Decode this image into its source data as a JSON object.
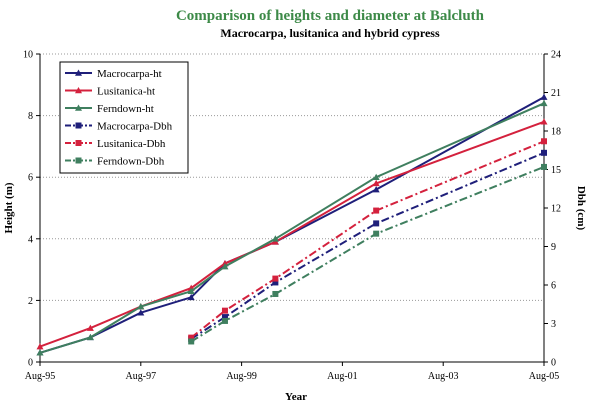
{
  "chart_data": {
    "type": "line",
    "title": "Comparison of heights and diameter at Balcluth",
    "subtitle": "Macrocarpa, lusitanica and hybrid cypress",
    "xlabel": "Year",
    "ylabel_left": "Height (m)",
    "ylabel_right": "Dbh (cm)",
    "x_range": [
      1995.58,
      2005.58
    ],
    "x_ticks": [
      {
        "label": "Aug-95",
        "value": 1995.58
      },
      {
        "label": "Aug-97",
        "value": 1997.58
      },
      {
        "label": "Aug-99",
        "value": 1999.58
      },
      {
        "label": "Aug-01",
        "value": 2001.58
      },
      {
        "label": "Aug-03",
        "value": 2003.58
      },
      {
        "label": "Aug-05",
        "value": 2005.58
      }
    ],
    "ylim_left": [
      0,
      10
    ],
    "y_ticks_left": [
      "0",
      "2",
      "4",
      "6",
      "8",
      "10"
    ],
    "ylim_right": [
      0,
      24
    ],
    "y_ticks_right": [
      "0",
      "3",
      "6",
      "9",
      "12",
      "15",
      "18",
      "21",
      "24"
    ],
    "grid": "horizontal",
    "legend_position": "top-left",
    "series": [
      {
        "name": "Macrocarpa-ht",
        "axis": "left",
        "color": "#1f1f7a",
        "style": "solid",
        "marker": "triangle",
        "x": [
          1995.58,
          1996.58,
          1997.58,
          1998.58,
          1999.25,
          2000.25,
          2002.25,
          2005.58
        ],
        "y": [
          0.3,
          0.8,
          1.6,
          2.1,
          3.2,
          3.9,
          5.6,
          8.6
        ]
      },
      {
        "name": "Lusitanica-ht",
        "axis": "left",
        "color": "#d4213d",
        "style": "solid",
        "marker": "triangle",
        "x": [
          1995.58,
          1996.58,
          1997.58,
          1998.58,
          1999.25,
          2000.25,
          2002.25,
          2005.58
        ],
        "y": [
          0.5,
          1.1,
          1.8,
          2.4,
          3.2,
          3.9,
          5.8,
          7.8
        ]
      },
      {
        "name": "Ferndown-ht",
        "axis": "left",
        "color": "#3f7f5f",
        "style": "solid",
        "marker": "triangle",
        "x": [
          1995.58,
          1996.58,
          1997.58,
          1998.58,
          1999.25,
          2000.25,
          2002.25,
          2005.58
        ],
        "y": [
          0.3,
          0.8,
          1.8,
          2.3,
          3.1,
          4.0,
          6.0,
          8.4
        ]
      },
      {
        "name": "Macrocarpa-Dbh",
        "axis": "right",
        "color": "#1f1f7a",
        "style": "dashdot",
        "marker": "square",
        "x": [
          1998.58,
          1999.25,
          2000.25,
          2002.25,
          2005.58
        ],
        "y": [
          1.8,
          3.5,
          6.2,
          10.8,
          16.3
        ]
      },
      {
        "name": "Lusitanica-Dbh",
        "axis": "right",
        "color": "#d4213d",
        "style": "dashdot",
        "marker": "square",
        "x": [
          1998.58,
          1999.25,
          2000.25,
          2002.25,
          2005.58
        ],
        "y": [
          1.9,
          4.0,
          6.5,
          11.8,
          17.2
        ]
      },
      {
        "name": "Ferndown-Dbh",
        "axis": "right",
        "color": "#3f7f5f",
        "style": "dashdot",
        "marker": "square",
        "x": [
          1998.58,
          1999.25,
          2000.25,
          2002.25,
          2005.58
        ],
        "y": [
          1.6,
          3.2,
          5.3,
          10.0,
          15.2
        ]
      }
    ]
  }
}
